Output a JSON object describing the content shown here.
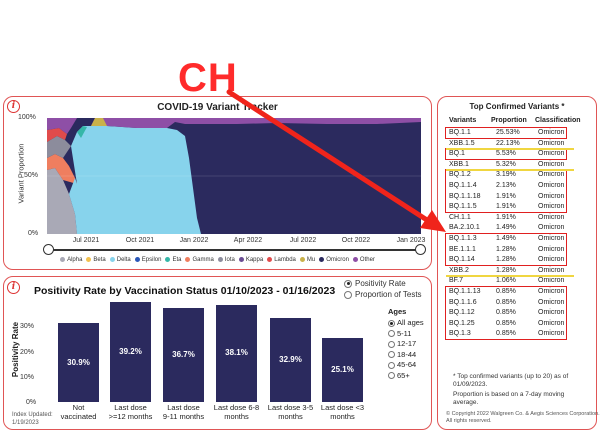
{
  "annotation": {
    "label": "CH"
  },
  "tracker": {
    "title": "COVID-19 Variant Tracker",
    "ylabel": "Variant Proportion",
    "yticks": [
      "100%",
      "50%",
      "0%"
    ],
    "xticks": [
      "Jul 2021",
      "Oct 2021",
      "Jan 2022",
      "Apr 2022",
      "Jul 2022",
      "Oct 2022",
      "Jan 2023"
    ],
    "legend": [
      {
        "name": "Alpha",
        "color": "#a9a9b6"
      },
      {
        "name": "Beta",
        "color": "#f2c14e"
      },
      {
        "name": "Delta",
        "color": "#87d3ec"
      },
      {
        "name": "Epsilon",
        "color": "#2a57b8"
      },
      {
        "name": "Eta",
        "color": "#35b7a8"
      },
      {
        "name": "Gamma",
        "color": "#ef7e5f"
      },
      {
        "name": "Iota",
        "color": "#8c8c9c"
      },
      {
        "name": "Kappa",
        "color": "#6a4c93"
      },
      {
        "name": "Lambda",
        "color": "#e14b4b"
      },
      {
        "name": "Mu",
        "color": "#c9b14a"
      },
      {
        "name": "Omicron",
        "color": "#2b2a5e"
      },
      {
        "name": "Other",
        "color": "#8e4fa6"
      }
    ]
  },
  "positivity": {
    "title": "Positivity Rate by Vaccination Status 01/10/2023 - 01/16/2023",
    "ylabel": "Positivity Rate",
    "toggle": [
      {
        "label": "Positivity Rate",
        "selected": true
      },
      {
        "label": "Proportion of Tests",
        "selected": false
      }
    ],
    "ages_title": "Ages",
    "ages": [
      {
        "label": "All ages",
        "selected": true
      },
      {
        "label": "5-11",
        "selected": false
      },
      {
        "label": "12-17",
        "selected": false
      },
      {
        "label": "18-44",
        "selected": false
      },
      {
        "label": "45-64",
        "selected": false
      },
      {
        "label": "65+",
        "selected": false
      }
    ],
    "index_updated": [
      "Index Updated:",
      "1/19/2023"
    ]
  },
  "chart_data": {
    "type": "bar",
    "title": "Positivity Rate by Vaccination Status 01/10/2023 - 01/16/2023",
    "ylabel": "Positivity Rate",
    "ylim": [
      0,
      40
    ],
    "yticks": [
      "30%",
      "20%",
      "10%",
      "0%"
    ],
    "categories": [
      [
        "Not",
        "vaccinated"
      ],
      [
        "Last dose",
        ">=12 months"
      ],
      [
        "Last dose",
        "9-11 months"
      ],
      [
        "Last dose 6-8",
        "months"
      ],
      [
        "Last dose 3-5",
        "months"
      ],
      [
        "Last dose <3",
        "months"
      ]
    ],
    "values": [
      30.9,
      39.2,
      36.7,
      38.1,
      32.9,
      25.1
    ],
    "value_labels": [
      "30.9%",
      "39.2%",
      "36.7%",
      "38.1%",
      "32.9%",
      "25.1%"
    ]
  },
  "variants": {
    "title": "Top Confirmed Variants *",
    "headers": [
      "Variants",
      "Proportion",
      "Classification"
    ],
    "rows": [
      [
        "BQ.1.1",
        "25.53%",
        "Omicron"
      ],
      [
        "XBB.1.5",
        "22.13%",
        "Omicron"
      ],
      [
        "BQ.1",
        "5.53%",
        "Omicron"
      ],
      [
        "XBB.1",
        "5.32%",
        "Omicron"
      ],
      [
        "BQ.1.2",
        "3.19%",
        "Omicron"
      ],
      [
        "BQ.1.1.4",
        "2.13%",
        "Omicron"
      ],
      [
        "BQ.1.1.18",
        "1.91%",
        "Omicron"
      ],
      [
        "BQ.1.1.5",
        "1.91%",
        "Omicron"
      ],
      [
        "CH.1.1",
        "1.91%",
        "Omicron"
      ],
      [
        "BA.2.10.1",
        "1.49%",
        "Omicron"
      ],
      [
        "BQ.1.1.3",
        "1.49%",
        "Omicron"
      ],
      [
        "BE.1.1.1",
        "1.28%",
        "Omicron"
      ],
      [
        "BQ.1.14",
        "1.28%",
        "Omicron"
      ],
      [
        "XBB.2",
        "1.28%",
        "Omicron"
      ],
      [
        "BF.7",
        "1.06%",
        "Omicron"
      ],
      [
        "BQ.1.1.13",
        "0.85%",
        "Omicron"
      ],
      [
        "BQ.1.1.6",
        "0.85%",
        "Omicron"
      ],
      [
        "BQ.1.12",
        "0.85%",
        "Omicron"
      ],
      [
        "BQ.1.25",
        "0.85%",
        "Omicron"
      ],
      [
        "BQ.1.3",
        "0.85%",
        "Omicron"
      ]
    ],
    "footnote_1": [
      "* Top confirmed variants (up to 20) as of",
      "01/09/2023."
    ],
    "footnote_2": [
      "Proportion is based on a 7-day moving",
      "average."
    ],
    "copyright": [
      "© Copyright 2022 Walgreen Co. & Aegis Sciences Corporation.",
      "All rights reserved."
    ]
  }
}
